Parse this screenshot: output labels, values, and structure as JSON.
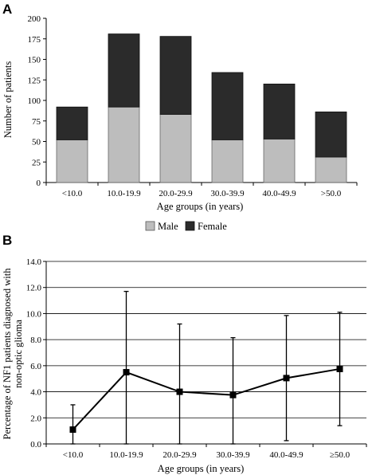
{
  "chart_data": [
    {
      "panel": "A",
      "type": "bar",
      "stacked": true,
      "categories": [
        "<10.0",
        "10.0-19.9",
        "20.0-29.9",
        "30.0-39.9",
        "40.0-49.9",
        ">50.0"
      ],
      "series": [
        {
          "name": "Male",
          "values": [
            52,
            92,
            83,
            52,
            53,
            31
          ],
          "color": "#bdbdbd"
        },
        {
          "name": "Female",
          "values": [
            40,
            89,
            95,
            82,
            67,
            55
          ],
          "color": "#2b2b2b"
        }
      ],
      "xlabel": "Age groups (in years)",
      "ylabel": "Number of patients",
      "ylim": [
        0,
        200
      ],
      "yticks": [
        "0",
        "25",
        "50",
        "75",
        "100",
        "125",
        "150",
        "175",
        "200"
      ],
      "grid": false,
      "legend": "bottom"
    },
    {
      "panel": "B",
      "type": "line",
      "categories": [
        "<10.0",
        "10.0-19.9",
        "20.0-29.9",
        "30.0-39.9",
        "40.0-49.9",
        "≥50.0"
      ],
      "series": [
        {
          "values": [
            1.1,
            5.5,
            4.0,
            3.75,
            5.05,
            5.75
          ]
        }
      ],
      "error_low": [
        0.0,
        0.0,
        0.0,
        0.0,
        0.25,
        1.4
      ],
      "error_high": [
        3.0,
        11.7,
        9.2,
        8.15,
        9.85,
        10.1
      ],
      "xlabel": "Age groups (in years)",
      "ylabel": "Percentage of NF1 patients diagnosed with non-optic glioma",
      "ylabel_lines": [
        "Percentage of NF1 patients diagnosed with",
        "non-optic glioma"
      ],
      "ylim": [
        0,
        14
      ],
      "yticks": [
        "0.0",
        "2.0",
        "4.0",
        "6.0",
        "8.0",
        "10.0",
        "12.0",
        "14.0"
      ],
      "grid": true,
      "legend": "none"
    }
  ]
}
